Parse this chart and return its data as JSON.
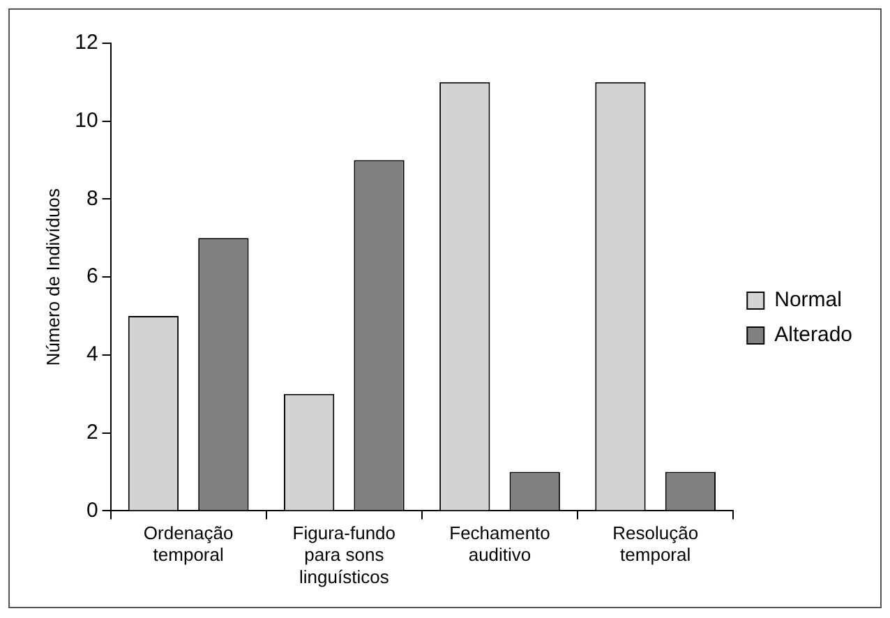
{
  "chart_data": {
    "type": "bar",
    "ylabel": "Número de Indivíduos",
    "categories": [
      "Ordenação temporal",
      "Figura-fundo para sons linguísticos",
      "Fechamento auditivo",
      "Resolução temporal"
    ],
    "series": [
      {
        "name": "Normal",
        "color": "#d3d3d3",
        "values": [
          5,
          3,
          11,
          11
        ]
      },
      {
        "name": "Alterado",
        "color": "#808080",
        "values": [
          7,
          9,
          1,
          1
        ]
      }
    ],
    "ylim": [
      0,
      12
    ],
    "yticks": [
      0,
      2,
      4,
      6,
      8,
      10,
      12
    ],
    "grid": false,
    "legend": "right"
  }
}
